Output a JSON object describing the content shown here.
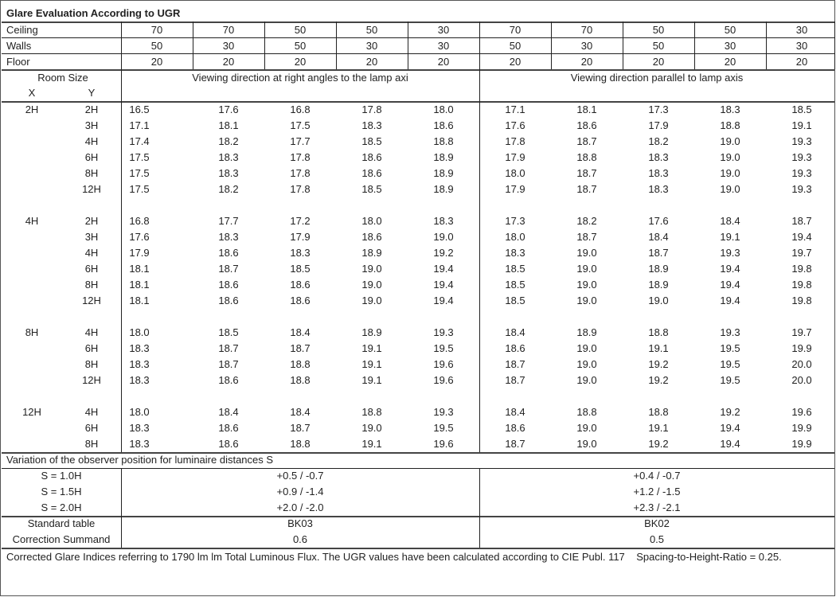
{
  "title": "Glare Evaluation According to UGR",
  "header_rows": [
    {
      "label": "Ceiling",
      "values": [
        "70",
        "70",
        "50",
        "50",
        "30",
        "70",
        "70",
        "50",
        "50",
        "30"
      ]
    },
    {
      "label": "Walls",
      "values": [
        "50",
        "30",
        "50",
        "30",
        "30",
        "50",
        "30",
        "50",
        "30",
        "30"
      ]
    },
    {
      "label": "Floor",
      "values": [
        "20",
        "20",
        "20",
        "20",
        "20",
        "20",
        "20",
        "20",
        "20",
        "20"
      ]
    }
  ],
  "room_size": {
    "label": "Room Size",
    "x": "X",
    "y": "Y"
  },
  "directions": [
    "Viewing direction at right angles to the lamp axi",
    "Viewing direction parallel to lamp axis"
  ],
  "groups": [
    {
      "x": "2H",
      "rows": [
        {
          "y": "2H",
          "values": [
            "16.5",
            "17.6",
            "16.8",
            "17.8",
            "18.0",
            "17.1",
            "18.1",
            "17.3",
            "18.3",
            "18.5"
          ]
        },
        {
          "y": "3H",
          "values": [
            "17.1",
            "18.1",
            "17.5",
            "18.3",
            "18.6",
            "17.6",
            "18.6",
            "17.9",
            "18.8",
            "19.1"
          ]
        },
        {
          "y": "4H",
          "values": [
            "17.4",
            "18.2",
            "17.7",
            "18.5",
            "18.8",
            "17.8",
            "18.7",
            "18.2",
            "19.0",
            "19.3"
          ]
        },
        {
          "y": "6H",
          "values": [
            "17.5",
            "18.3",
            "17.8",
            "18.6",
            "18.9",
            "17.9",
            "18.8",
            "18.3",
            "19.0",
            "19.3"
          ]
        },
        {
          "y": "8H",
          "values": [
            "17.5",
            "18.3",
            "17.8",
            "18.6",
            "18.9",
            "18.0",
            "18.7",
            "18.3",
            "19.0",
            "19.3"
          ]
        },
        {
          "y": "12H",
          "values": [
            "17.5",
            "18.2",
            "17.8",
            "18.5",
            "18.9",
            "17.9",
            "18.7",
            "18.3",
            "19.0",
            "19.3"
          ]
        }
      ]
    },
    {
      "x": "4H",
      "rows": [
        {
          "y": "2H",
          "values": [
            "16.8",
            "17.7",
            "17.2",
            "18.0",
            "18.3",
            "17.3",
            "18.2",
            "17.6",
            "18.4",
            "18.7"
          ]
        },
        {
          "y": "3H",
          "values": [
            "17.6",
            "18.3",
            "17.9",
            "18.6",
            "19.0",
            "18.0",
            "18.7",
            "18.4",
            "19.1",
            "19.4"
          ]
        },
        {
          "y": "4H",
          "values": [
            "17.9",
            "18.6",
            "18.3",
            "18.9",
            "19.2",
            "18.3",
            "19.0",
            "18.7",
            "19.3",
            "19.7"
          ]
        },
        {
          "y": "6H",
          "values": [
            "18.1",
            "18.7",
            "18.5",
            "19.0",
            "19.4",
            "18.5",
            "19.0",
            "18.9",
            "19.4",
            "19.8"
          ]
        },
        {
          "y": "8H",
          "values": [
            "18.1",
            "18.6",
            "18.6",
            "19.0",
            "19.4",
            "18.5",
            "19.0",
            "18.9",
            "19.4",
            "19.8"
          ]
        },
        {
          "y": "12H",
          "values": [
            "18.1",
            "18.6",
            "18.6",
            "19.0",
            "19.4",
            "18.5",
            "19.0",
            "19.0",
            "19.4",
            "19.8"
          ]
        }
      ]
    },
    {
      "x": "8H",
      "rows": [
        {
          "y": "4H",
          "values": [
            "18.0",
            "18.5",
            "18.4",
            "18.9",
            "19.3",
            "18.4",
            "18.9",
            "18.8",
            "19.3",
            "19.7"
          ]
        },
        {
          "y": "6H",
          "values": [
            "18.3",
            "18.7",
            "18.7",
            "19.1",
            "19.5",
            "18.6",
            "19.0",
            "19.1",
            "19.5",
            "19.9"
          ]
        },
        {
          "y": "8H",
          "values": [
            "18.3",
            "18.7",
            "18.8",
            "19.1",
            "19.6",
            "18.7",
            "19.0",
            "19.2",
            "19.5",
            "20.0"
          ]
        },
        {
          "y": "12H",
          "values": [
            "18.3",
            "18.6",
            "18.8",
            "19.1",
            "19.6",
            "18.7",
            "19.0",
            "19.2",
            "19.5",
            "20.0"
          ]
        }
      ]
    },
    {
      "x": "12H",
      "rows": [
        {
          "y": "4H",
          "values": [
            "18.0",
            "18.4",
            "18.4",
            "18.8",
            "19.3",
            "18.4",
            "18.8",
            "18.8",
            "19.2",
            "19.6"
          ]
        },
        {
          "y": "6H",
          "values": [
            "18.3",
            "18.6",
            "18.7",
            "19.0",
            "19.5",
            "18.6",
            "19.0",
            "19.1",
            "19.4",
            "19.9"
          ]
        },
        {
          "y": "8H",
          "values": [
            "18.3",
            "18.6",
            "18.8",
            "19.1",
            "19.6",
            "18.7",
            "19.0",
            "19.2",
            "19.4",
            "19.9"
          ]
        }
      ]
    }
  ],
  "variation": {
    "label": "Variation of the observer position for luminaire distances S",
    "rows": [
      {
        "label": "S = 1.0H",
        "right": "+0.5 / -0.7",
        "parallel": "+0.4 / -0.7"
      },
      {
        "label": "S = 1.5H",
        "right": "+0.9 / -1.4",
        "parallel": "+1.2 / -1.5"
      },
      {
        "label": "S = 2.0H",
        "right": "+2.0 / -2.0",
        "parallel": "+2.3 / -2.1"
      }
    ]
  },
  "standard_table": {
    "label": "Standard table",
    "right": "BK03",
    "parallel": "BK02"
  },
  "correction": {
    "label": "Correction Summand",
    "right": "0.6",
    "parallel": "0.5"
  },
  "footnote": "Corrected Glare Indices referring to 1790 lm lm Total Luminous Flux. The UGR values have been calculated according to CIE Publ. 117    Spacing-to-Height-Ratio = 0.25."
}
